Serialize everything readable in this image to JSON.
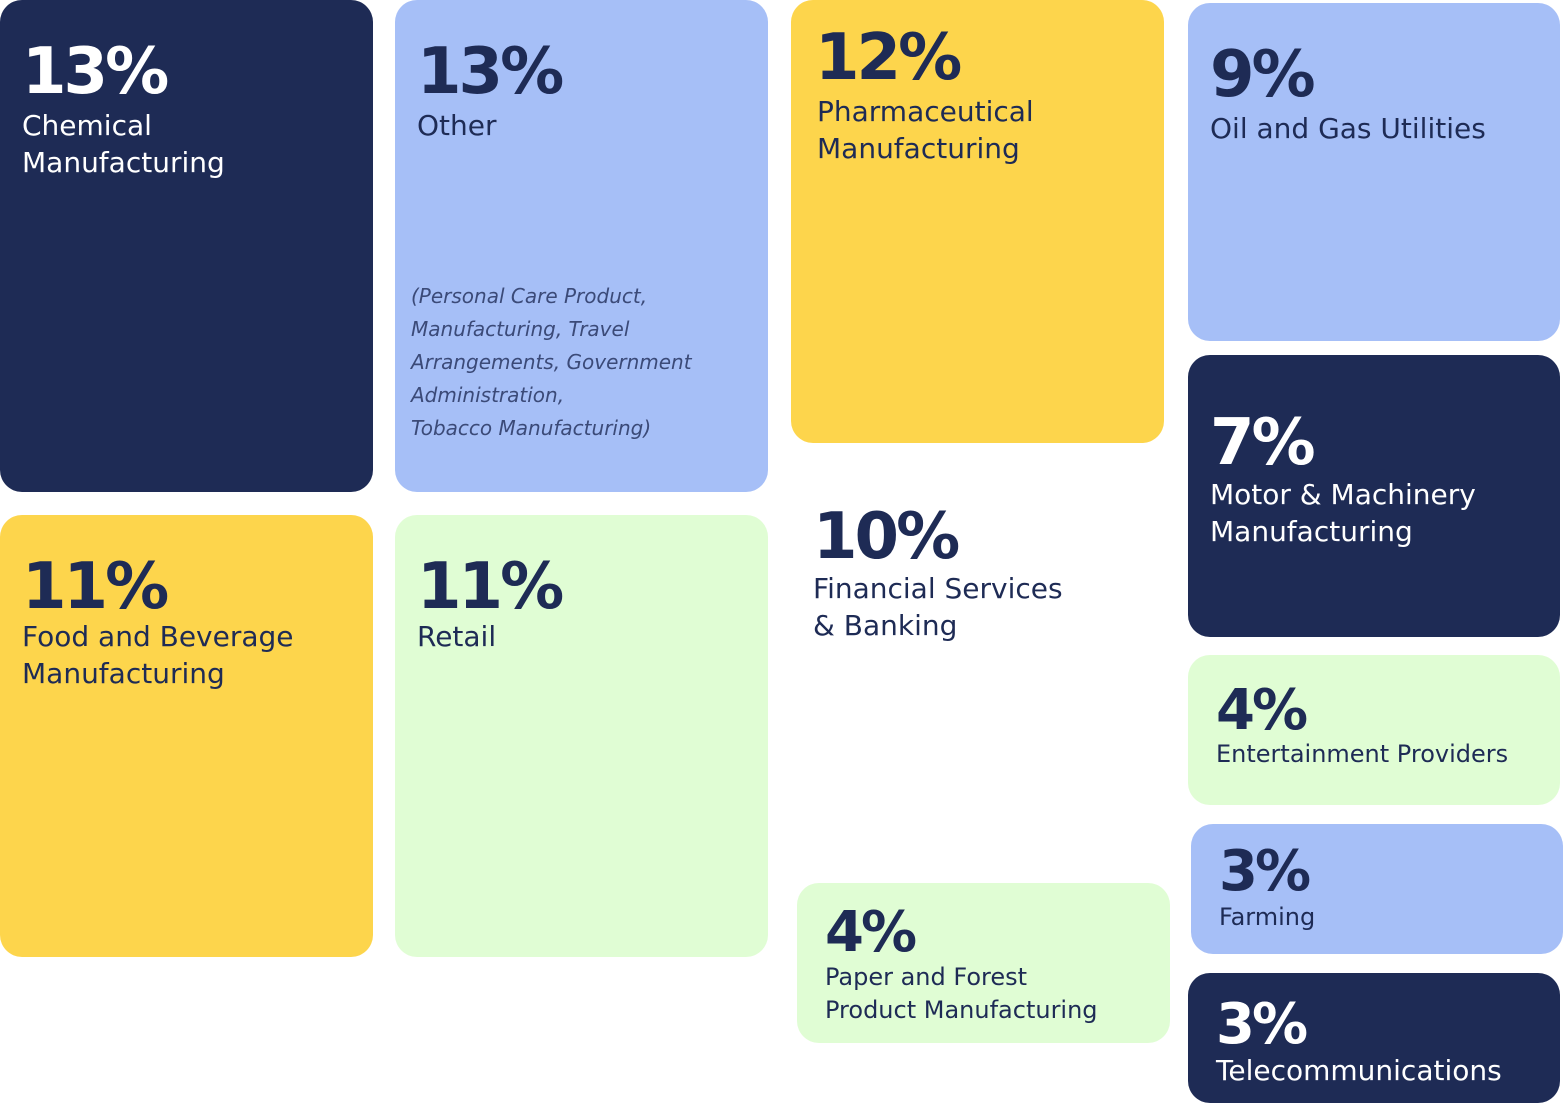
{
  "chart_data": {
    "type": "treemap",
    "unit": "%",
    "categories": [
      "Chemical Manufacturing",
      "Other",
      "Pharmaceutical Manufacturing",
      "Oil and Gas Utilities",
      "Food and Beverage Manufacturing",
      "Retail",
      "Financial Services & Banking",
      "Motor & Machinery Manufacturing",
      "Entertainment Providers",
      "Paper and Forest Product Manufacturing",
      "Farming",
      "Telecommunications"
    ],
    "values": [
      13,
      13,
      12,
      9,
      11,
      11,
      10,
      7,
      4,
      4,
      3,
      3
    ],
    "tiles": [
      {
        "pct": "13%",
        "label": "Chemical\nManufacturing",
        "color": "#1e2b55"
      },
      {
        "pct": "13%",
        "label": "Other",
        "note": "(Personal Care Product,\nManufacturing, Travel\nArrangements, Government\nAdministration,\nTobacco Manufacturing)",
        "color": "#a6bff7"
      },
      {
        "pct": "12%",
        "label": "Pharmaceutical\nManufacturing",
        "color": "#fdd54c"
      },
      {
        "pct": "9%",
        "label": "Oil and Gas Utilities",
        "color": "#a6bff7"
      },
      {
        "pct": "11%",
        "label": "Food and Beverage\nManufacturing",
        "color": "#fdd54c"
      },
      {
        "pct": "11%",
        "label": "Retail",
        "color": "#e0fdd4"
      },
      {
        "pct": "10%",
        "label": "Financial Services\n& Banking",
        "color": "#ffffff"
      },
      {
        "pct": "7%",
        "label": "Motor & Machinery\nManufacturing",
        "color": "#1e2b55"
      },
      {
        "pct": "4%",
        "label": "Entertainment Providers",
        "color": "#e0fdd4"
      },
      {
        "pct": "4%",
        "label": "Paper and Forest\nProduct Manufacturing",
        "color": "#e0fdd4"
      },
      {
        "pct": "3%",
        "label": "Farming",
        "color": "#a6bff7"
      },
      {
        "pct": "3%",
        "label": "Telecommunications",
        "color": "#1e2b55"
      }
    ]
  }
}
